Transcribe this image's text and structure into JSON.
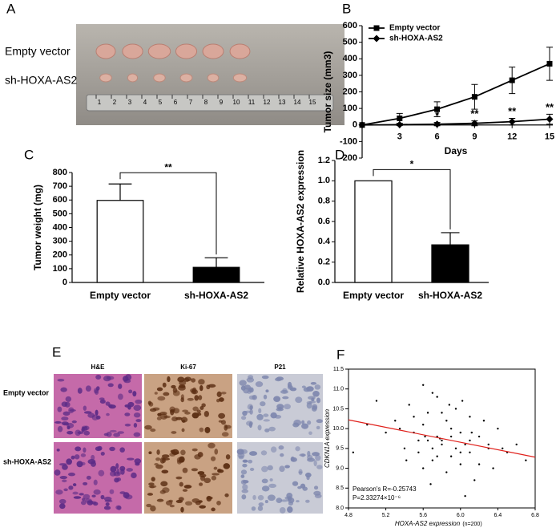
{
  "panel_labels": [
    "A",
    "B",
    "C",
    "D",
    "E",
    "F"
  ],
  "photo": {
    "row_labels": [
      "Empty vector",
      "sh-HOXA-AS2"
    ],
    "ruler_numbers": [
      "1",
      "2",
      "3",
      "4",
      "5",
      "6",
      "7",
      "8",
      "9",
      "10",
      "11",
      "12",
      "13",
      "14",
      "15"
    ]
  },
  "histology": {
    "columns": [
      "H&E",
      "Ki-67",
      "P21"
    ],
    "rows": [
      "Empty vector",
      "sh-HOXA-AS2"
    ]
  },
  "chart_data": [
    {
      "type": "line",
      "y_label": "Tumor size (mm3)",
      "x_label": "Days",
      "x": [
        0,
        3,
        6,
        9,
        12,
        15
      ],
      "xlim": [
        0,
        15
      ],
      "xticks": [
        3,
        6,
        9,
        12,
        15
      ],
      "ylim": [
        -200,
        600
      ],
      "yticks": [
        -200,
        -100,
        0,
        100,
        200,
        300,
        400,
        500,
        600
      ],
      "legend": "upper left",
      "series": [
        {
          "name": "Empty vector",
          "color": "#000000",
          "marker": "square",
          "values": [
            0,
            40,
            95,
            170,
            270,
            370
          ],
          "errors": [
            0,
            30,
            45,
            75,
            80,
            100
          ]
        },
        {
          "name": "sh-HOXA-AS2",
          "color": "#000000",
          "marker": "diamond",
          "values": [
            0,
            2,
            5,
            10,
            20,
            35
          ],
          "errors": [
            0,
            5,
            10,
            15,
            20,
            30
          ]
        }
      ],
      "annotations": [
        {
          "x": 6,
          "text": "*"
        },
        {
          "x": 9,
          "text": "**"
        },
        {
          "x": 12,
          "text": "**"
        },
        {
          "x": 15,
          "text": "**"
        }
      ]
    },
    {
      "type": "bar",
      "y_label": "Tumor weight (mg)",
      "categories": [
        "Empty vector",
        "sh-HOXA-AS2"
      ],
      "values": [
        597,
        110
      ],
      "errors": [
        120,
        70
      ],
      "colors": [
        "#ffffff",
        "#000000"
      ],
      "ylim": [
        0,
        800
      ],
      "yticks": [
        0,
        100,
        200,
        300,
        400,
        500,
        600,
        700,
        800
      ],
      "significance": "**"
    },
    {
      "type": "bar",
      "y_label": "Relative HOXA-AS2 expression",
      "categories": [
        "Empty vector",
        "sh-HOXA-AS2"
      ],
      "values": [
        1.0,
        0.37
      ],
      "errors": [
        0,
        0.12
      ],
      "colors": [
        "#ffffff",
        "#000000"
      ],
      "ylim": [
        0,
        1.2
      ],
      "yticks": [
        {
          "value": 0,
          "label": "0.0"
        },
        0.2,
        0.4,
        0.6,
        0.8,
        {
          "value": 1,
          "label": "1.0"
        },
        1.2
      ],
      "significance": "*"
    },
    {
      "type": "scatter",
      "y_label": "CDKN1A expression",
      "x_label": "HOXA-AS2 expression",
      "x_note": "(n=200)",
      "xlim": [
        4.8,
        6.8
      ],
      "xticks": [
        4.8,
        5.2,
        5.6,
        {
          "value": 6,
          "label": "6.0"
        },
        6.4,
        6.8
      ],
      "ylim": [
        8,
        11.5
      ],
      "yticks": [
        {
          "value": 8,
          "label": "8.0"
        },
        8.5,
        {
          "value": 9,
          "label": "9.0"
        },
        9.5,
        {
          "value": 10,
          "label": "10.0"
        },
        10.5,
        {
          "value": 11,
          "label": "11.0"
        },
        11.5
      ],
      "color": "#000000",
      "x": [
        5.1,
        5.3,
        5.4,
        5.45,
        5.5,
        5.55,
        5.6,
        5.6,
        5.65,
        5.7,
        5.7,
        5.75,
        5.8,
        5.8,
        5.85,
        5.9,
        5.9,
        5.95,
        6.0,
        6.0,
        6.05,
        6.1,
        6.1,
        6.15,
        6.2,
        6.25,
        6.3,
        6.35,
        6.4,
        6.5,
        6.6,
        6.7,
        5.2,
        5.35,
        5.5,
        5.6,
        5.7,
        5.75,
        5.8,
        5.85,
        5.9,
        6.0,
        6.1,
        6.2,
        6.3,
        5.65,
        5.75,
        5.95,
        6.05,
        4.85,
        5.0,
        5.55,
        5.78,
        6.12,
        6.45,
        5.68,
        5.88,
        6.02,
        5.42,
        5.62
      ],
      "values": [
        10.7,
        10.2,
        9.5,
        10.6,
        9.9,
        9.4,
        11.1,
        10.1,
        9.7,
        10.9,
        9.2,
        9.8,
        10.4,
        9.6,
        8.9,
        10.0,
        9.3,
        10.5,
        9.9,
        9.1,
        9.6,
        10.3,
        9.4,
        8.7,
        9.8,
        10.2,
        9.5,
        9.0,
        10.0,
        9.4,
        9.6,
        9.2,
        9.9,
        10.0,
        10.3,
        9.0,
        9.5,
        10.8,
        9.7,
        10.2,
        9.8,
        9.4,
        9.7,
        9.1,
        9.6,
        10.4,
        9.3,
        9.5,
        8.3,
        9.4,
        10.1,
        9.7,
        9.75,
        9.9,
        9.5,
        8.6,
        10.6,
        10.7,
        9.2,
        9.8
      ],
      "fit": {
        "color": "#e0201b",
        "x": [
          4.8,
          6.8
        ],
        "y": [
          10.22,
          9.28
        ]
      },
      "annotations": [
        "Pearson's R=-0.25743",
        "P=2.33274×10⁻⁶"
      ]
    }
  ]
}
